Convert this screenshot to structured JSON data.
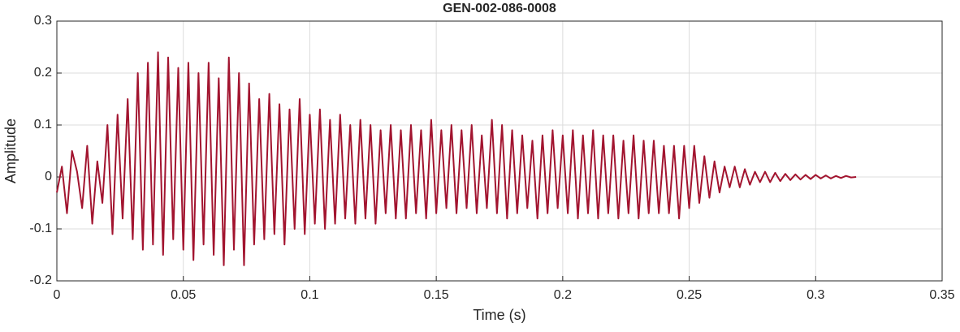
{
  "chart_data": {
    "type": "line",
    "title": "GEN-002-086-0008",
    "xlabel": "Time (s)",
    "ylabel": "Amplitude",
    "x": [
      0,
      0.002,
      0.004,
      0.006,
      0.008,
      0.01,
      0.012,
      0.014,
      0.016,
      0.018,
      0.02,
      0.022,
      0.024,
      0.026,
      0.028,
      0.03,
      0.032,
      0.034,
      0.036,
      0.038,
      0.04,
      0.042,
      0.044,
      0.046,
      0.048,
      0.05,
      0.052,
      0.054,
      0.056,
      0.058,
      0.06,
      0.062,
      0.064,
      0.066,
      0.068,
      0.07,
      0.072,
      0.074,
      0.076,
      0.078,
      0.08,
      0.082,
      0.084,
      0.086,
      0.088,
      0.09,
      0.092,
      0.094,
      0.096,
      0.098,
      0.1,
      0.102,
      0.104,
      0.106,
      0.108,
      0.11,
      0.112,
      0.114,
      0.116,
      0.118,
      0.12,
      0.122,
      0.124,
      0.126,
      0.128,
      0.13,
      0.132,
      0.134,
      0.136,
      0.138,
      0.14,
      0.142,
      0.144,
      0.146,
      0.148,
      0.15,
      0.152,
      0.154,
      0.156,
      0.158,
      0.16,
      0.162,
      0.164,
      0.166,
      0.168,
      0.17,
      0.172,
      0.174,
      0.176,
      0.178,
      0.18,
      0.182,
      0.184,
      0.186,
      0.188,
      0.19,
      0.192,
      0.194,
      0.196,
      0.198,
      0.2,
      0.202,
      0.204,
      0.206,
      0.208,
      0.21,
      0.212,
      0.214,
      0.216,
      0.218,
      0.22,
      0.222,
      0.224,
      0.226,
      0.228,
      0.23,
      0.232,
      0.234,
      0.236,
      0.238,
      0.24,
      0.242,
      0.244,
      0.246,
      0.248,
      0.25,
      0.252,
      0.254,
      0.256,
      0.258,
      0.26,
      0.262,
      0.264,
      0.266,
      0.268,
      0.27,
      0.272,
      0.274,
      0.276,
      0.278,
      0.28,
      0.282,
      0.284,
      0.286,
      0.288,
      0.29,
      0.292,
      0.294,
      0.296,
      0.298,
      0.3,
      0.302,
      0.304,
      0.306,
      0.308,
      0.31,
      0.312,
      0.314,
      0.316
    ],
    "series": [
      {
        "color": "#a2142f",
        "values": [
          -0.03,
          0.02,
          -0.07,
          0.05,
          0.01,
          -0.06,
          0.06,
          -0.09,
          0.03,
          -0.05,
          0.1,
          -0.11,
          0.12,
          -0.08,
          0.15,
          -0.12,
          0.2,
          -0.14,
          0.22,
          -0.13,
          0.24,
          -0.15,
          0.23,
          -0.12,
          0.21,
          -0.14,
          0.22,
          -0.16,
          0.2,
          -0.13,
          0.22,
          -0.15,
          0.19,
          -0.17,
          0.23,
          -0.14,
          0.2,
          -0.17,
          0.18,
          -0.13,
          0.15,
          -0.12,
          0.16,
          -0.11,
          0.14,
          -0.13,
          0.13,
          -0.1,
          0.15,
          -0.11,
          0.12,
          -0.09,
          0.13,
          -0.1,
          0.11,
          -0.09,
          0.12,
          -0.08,
          0.1,
          -0.09,
          0.11,
          -0.08,
          0.1,
          -0.09,
          0.09,
          -0.07,
          0.1,
          -0.08,
          0.09,
          -0.08,
          0.1,
          -0.07,
          0.09,
          -0.08,
          0.11,
          -0.07,
          0.09,
          -0.06,
          0.1,
          -0.07,
          0.09,
          -0.06,
          0.1,
          -0.07,
          0.08,
          -0.06,
          0.11,
          -0.07,
          0.1,
          -0.08,
          0.09,
          -0.07,
          0.08,
          -0.06,
          0.07,
          -0.08,
          0.08,
          -0.07,
          0.09,
          -0.06,
          0.08,
          -0.07,
          0.09,
          -0.08,
          0.08,
          -0.07,
          0.09,
          -0.08,
          0.08,
          -0.07,
          0.08,
          -0.08,
          0.07,
          -0.07,
          0.08,
          -0.08,
          0.07,
          -0.07,
          0.07,
          -0.07,
          0.06,
          -0.07,
          0.06,
          -0.08,
          0.06,
          -0.06,
          0.06,
          -0.05,
          0.04,
          -0.04,
          0.03,
          -0.03,
          0.02,
          -0.02,
          0.02,
          -0.02,
          0.015,
          -0.015,
          0.01,
          -0.01,
          0.01,
          -0.01,
          0.008,
          -0.008,
          0.006,
          -0.006,
          0.005,
          -0.005,
          0.004,
          -0.004,
          0.004,
          -0.003,
          0.003,
          -0.003,
          0.002,
          -0.002,
          0.002,
          -0.001,
          0
        ]
      }
    ],
    "xlim": [
      0,
      0.35
    ],
    "xticks": [
      0,
      0.05,
      0.1,
      0.15,
      0.2,
      0.25,
      0.3,
      0.35
    ],
    "ylim": [
      -0.2,
      0.3
    ],
    "yticks": [
      -0.2,
      -0.1,
      0,
      0.1,
      0.2,
      0.3
    ],
    "grid": true
  }
}
